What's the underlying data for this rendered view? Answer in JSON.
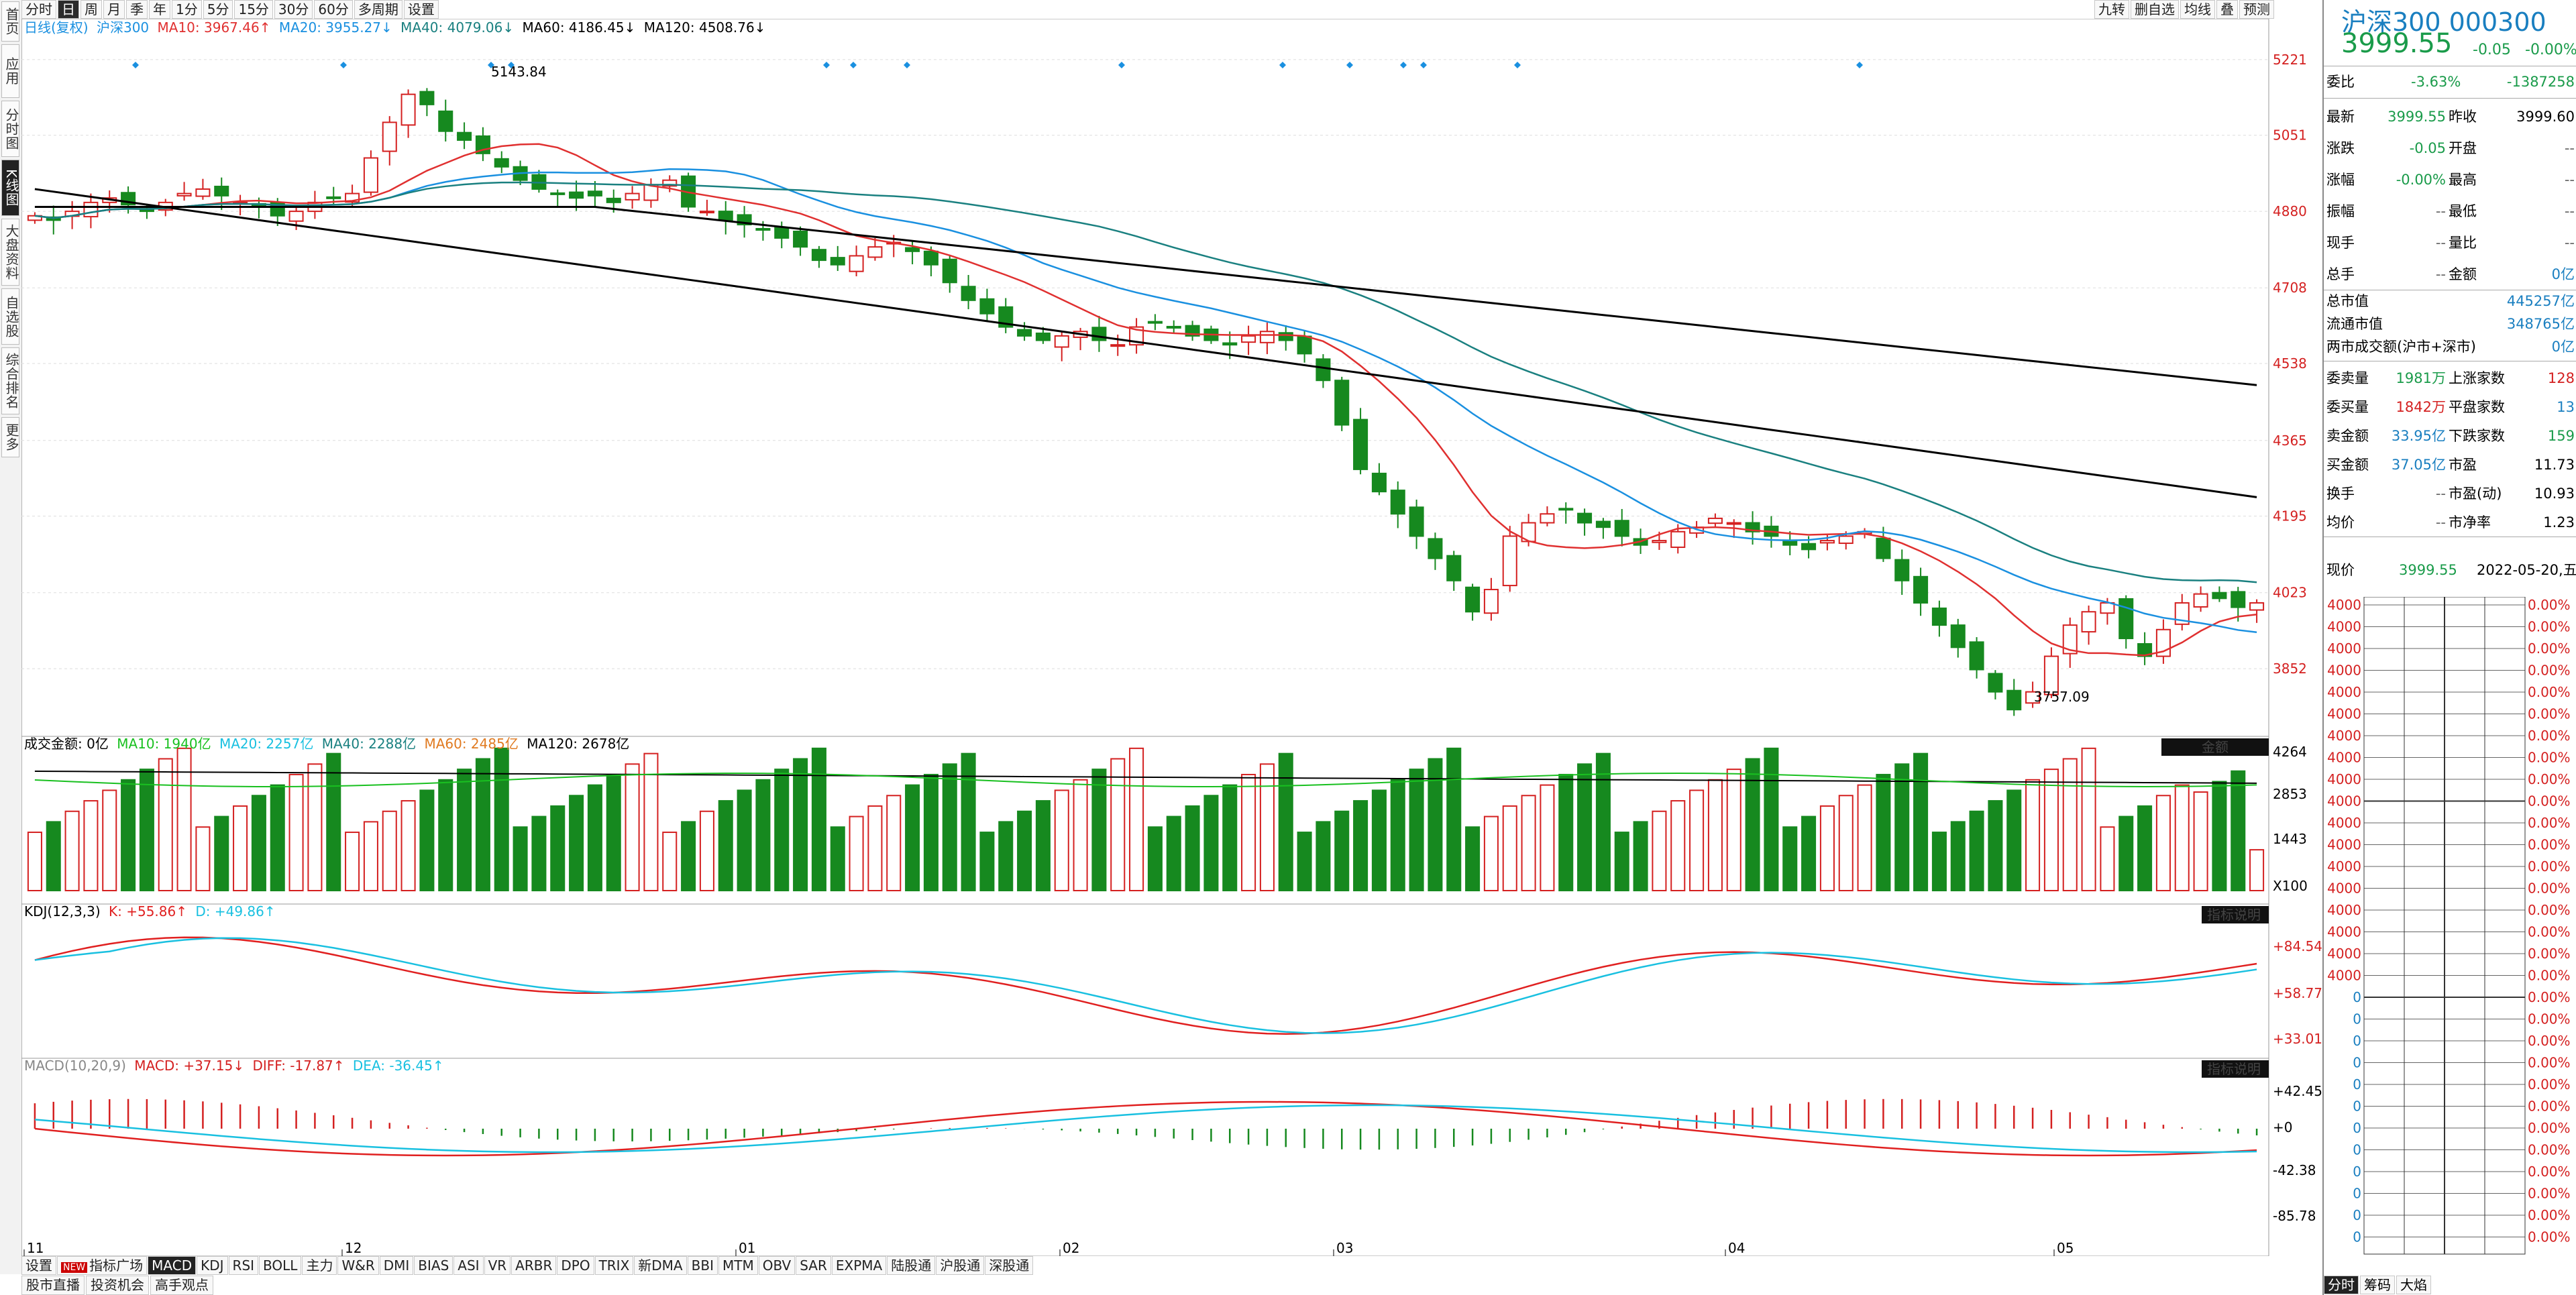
{
  "left_tabs": [
    "首页",
    "应用",
    "分时图",
    "K线图",
    "大盘资料",
    "自选股",
    "综合排名",
    "更多"
  ],
  "left_active": 3,
  "periods": [
    "分时",
    "日",
    "周",
    "月",
    "季",
    "年",
    "1分",
    "5分",
    "15分",
    "30分",
    "60分",
    "多周期",
    "设置"
  ],
  "period_active": 1,
  "right_tools": [
    "九转",
    "删自选",
    "均线",
    "叠",
    "预测"
  ],
  "price_legend": {
    "prefix": "日线(复权)",
    "name": "沪深300",
    "ma10": "MA10: 3967.46↑",
    "ma20": "MA20: 3955.27↓",
    "ma40": "MA40: 4079.06↓",
    "ma60": "MA60: 4186.45↓",
    "ma120": "MA120: 4508.76↓"
  },
  "price_axis_ticks": [
    "5221",
    "5051",
    "4880",
    "4708",
    "4538",
    "4365",
    "4195",
    "4023",
    "3852"
  ],
  "price_high_label": "5143.84",
  "price_low_label": "3757.09",
  "volume_legend": {
    "prefix": "成交金额: 0亿",
    "ma10": "MA10: 1940亿",
    "ma20": "MA20: 2257亿",
    "ma40": "MA40: 2288亿",
    "ma60": "MA60: 2485亿",
    "ma120": "MA120: 2678亿"
  },
  "volume_button": "金额",
  "volume_axis_ticks": [
    "4264",
    "2853",
    "1443",
    "X100"
  ],
  "kdj_legend": {
    "prefix": "KDJ(12,3,3)",
    "k": "K: +55.86↑",
    "d": "D: +49.86↑"
  },
  "kdj_axis_ticks": [
    "+84.54",
    "+58.77",
    "+33.01"
  ],
  "kdj_button": "指标说明",
  "macd_legend": {
    "prefix": "MACD(10,20,9)",
    "macd": "MACD: +37.15↓",
    "diff": "DIFF: -17.87↑",
    "dea": "DEA: -36.45↑"
  },
  "macd_axis_ticks": [
    "+42.45",
    "+0",
    "-42.38",
    "-85.78"
  ],
  "macd_button": "指标说明",
  "x_ticks": [
    "11",
    "12",
    "01",
    "02",
    "03",
    "04",
    "05"
  ],
  "indicator_tabs": [
    "设置",
    "指标广场",
    "MACD",
    "KDJ",
    "RSI",
    "BOLL",
    "主力",
    "W&R",
    "DMI",
    "BIAS",
    "ASI",
    "VR",
    "ARBR",
    "DPO",
    "TRIX",
    "新DMA",
    "BBI",
    "MTM",
    "OBV",
    "SAR",
    "EXPMA",
    "陆股通",
    "沪股通",
    "深股通"
  ],
  "indicator_new_badge": "NEW",
  "indicator_active": 2,
  "bottom_tabs": [
    "股市直播",
    "投资机会",
    "高手观点"
  ],
  "quote": {
    "title": "沪深300 000300",
    "price": "3999.55",
    "change": "-0.05",
    "change_pct": "-0.00%",
    "weibi_label": "委比",
    "weibi_pct": "-3.63%",
    "weibi_val": "-1387258",
    "rows": [
      {
        "l1": "最新",
        "v1": "3999.55",
        "c1": "green",
        "l2": "昨收",
        "v2": "3999.60",
        "c2": "black"
      },
      {
        "l1": "涨跌",
        "v1": "-0.05",
        "c1": "green",
        "l2": "开盘",
        "v2": "--",
        "c2": "gray"
      },
      {
        "l1": "涨幅",
        "v1": "-0.00%",
        "c1": "green",
        "l2": "最高",
        "v2": "--",
        "c2": "gray"
      },
      {
        "l1": "振幅",
        "v1": "--",
        "c1": "gray",
        "l2": "最低",
        "v2": "--",
        "c2": "gray"
      },
      {
        "l1": "现手",
        "v1": "--",
        "c1": "gray",
        "l2": "量比",
        "v2": "--",
        "c2": "gray"
      },
      {
        "l1": "总手",
        "v1": "--",
        "c1": "gray",
        "l2": "金额",
        "v2": "0亿",
        "c2": "blue"
      }
    ],
    "cap_rows": [
      {
        "l": "总市值",
        "v": "445257亿"
      },
      {
        "l": "流通市值",
        "v": "348765亿"
      },
      {
        "l": "两市成交额(沪市+深市)",
        "v": "0亿"
      }
    ],
    "order_rows": [
      {
        "l1": "委卖量",
        "v1": "1981万",
        "c1": "green",
        "l2": "上涨家数",
        "v2": "128",
        "c2": "red"
      },
      {
        "l1": "委买量",
        "v1": "1842万",
        "c1": "red",
        "l2": "平盘家数",
        "v2": "13",
        "c2": "blue"
      },
      {
        "l1": "卖金额",
        "v1": "33.95亿",
        "c1": "blue",
        "l2": "下跌家数",
        "v2": "159",
        "c2": "green"
      },
      {
        "l1": "买金额",
        "v1": "37.05亿",
        "c1": "blue",
        "l2": "市盈",
        "v2": "11.73",
        "c2": "black"
      },
      {
        "l1": "换手",
        "v1": "--",
        "c1": "gray",
        "l2": "市盈(动)",
        "v2": "10.93",
        "c2": "black"
      },
      {
        "l1": "均价",
        "v1": "--",
        "c1": "gray",
        "l2": "市净率",
        "v2": "1.23",
        "c2": "black"
      }
    ],
    "now_label": "现价",
    "now_price": "3999.55",
    "date": "2022-05-20,五",
    "mini_left": [
      "4000",
      "4000",
      "4000",
      "4000",
      "4000",
      "4000",
      "4000",
      "4000",
      "4000",
      "4000",
      "4000",
      "4000",
      "4000",
      "4000",
      "4000",
      "4000",
      "4000",
      "4000",
      "0",
      "0",
      "0",
      "0",
      "0",
      "0",
      "0",
      "0",
      "0",
      "0",
      "0",
      "0"
    ],
    "mini_right": [
      "0.00%",
      "0.00%",
      "0.00%",
      "0.00%",
      "0.00%",
      "0.00%",
      "0.00%",
      "0.00%",
      "0.00%",
      "0.00%",
      "0.00%",
      "0.00%",
      "0.00%",
      "0.00%",
      "0.00%",
      "0.00%",
      "0.00%",
      "0.00%",
      "0.00%",
      "0.00%",
      "0.00%",
      "0.00%",
      "0.00%",
      "0.00%",
      "0.00%",
      "0.00%",
      "0.00%",
      "0.00%",
      "0.00%",
      "0.00%"
    ],
    "tabs": [
      "分时",
      "筹码",
      "大焰"
    ]
  },
  "colors": {
    "up": "#d42020",
    "down": "#16891f",
    "ma10": "#e03030",
    "ma20": "#1a90e0",
    "ma40": "#1a8080",
    "ma60": "#e07a20",
    "ma120": "#000000",
    "k": "#e02020",
    "d": "#19c0e0"
  },
  "chart_data": {
    "type": "candlestick",
    "series_close_approx": [
      4870,
      4860,
      4880,
      4900,
      4910,
      4895,
      4880,
      4900,
      4920,
      4930,
      4915,
      4900,
      4890,
      4870,
      4880,
      4900,
      4910,
      4920,
      5000,
      5080,
      5143,
      5120,
      5060,
      5040,
      5010,
      4980,
      4950,
      4930,
      4920,
      4910,
      4915,
      4900,
      4920,
      4940,
      4950,
      4890,
      4880,
      4860,
      4850,
      4840,
      4820,
      4800,
      4770,
      4760,
      4780,
      4800,
      4810,
      4790,
      4760,
      4720,
      4680,
      4650,
      4620,
      4600,
      4590,
      4600,
      4610,
      4590,
      4580,
      4620,
      4630,
      4620,
      4600,
      4590,
      4580,
      4600,
      4610,
      4590,
      4560,
      4500,
      4400,
      4300,
      4250,
      4200,
      4150,
      4100,
      4050,
      3980,
      4030,
      4150,
      4180,
      4200,
      4210,
      4180,
      4170,
      4150,
      4130,
      4140,
      4160,
      4170,
      4190,
      4180,
      4160,
      4150,
      4130,
      4120,
      4140,
      4150,
      4160,
      4100,
      4050,
      4000,
      3950,
      3900,
      3850,
      3800,
      3760,
      3800,
      3880,
      3950,
      3980,
      4000,
      3920,
      3880,
      3940,
      4000,
      4020,
      4010,
      3990,
      4000
    ],
    "ylim": [
      3757.09,
      5221
    ]
  }
}
